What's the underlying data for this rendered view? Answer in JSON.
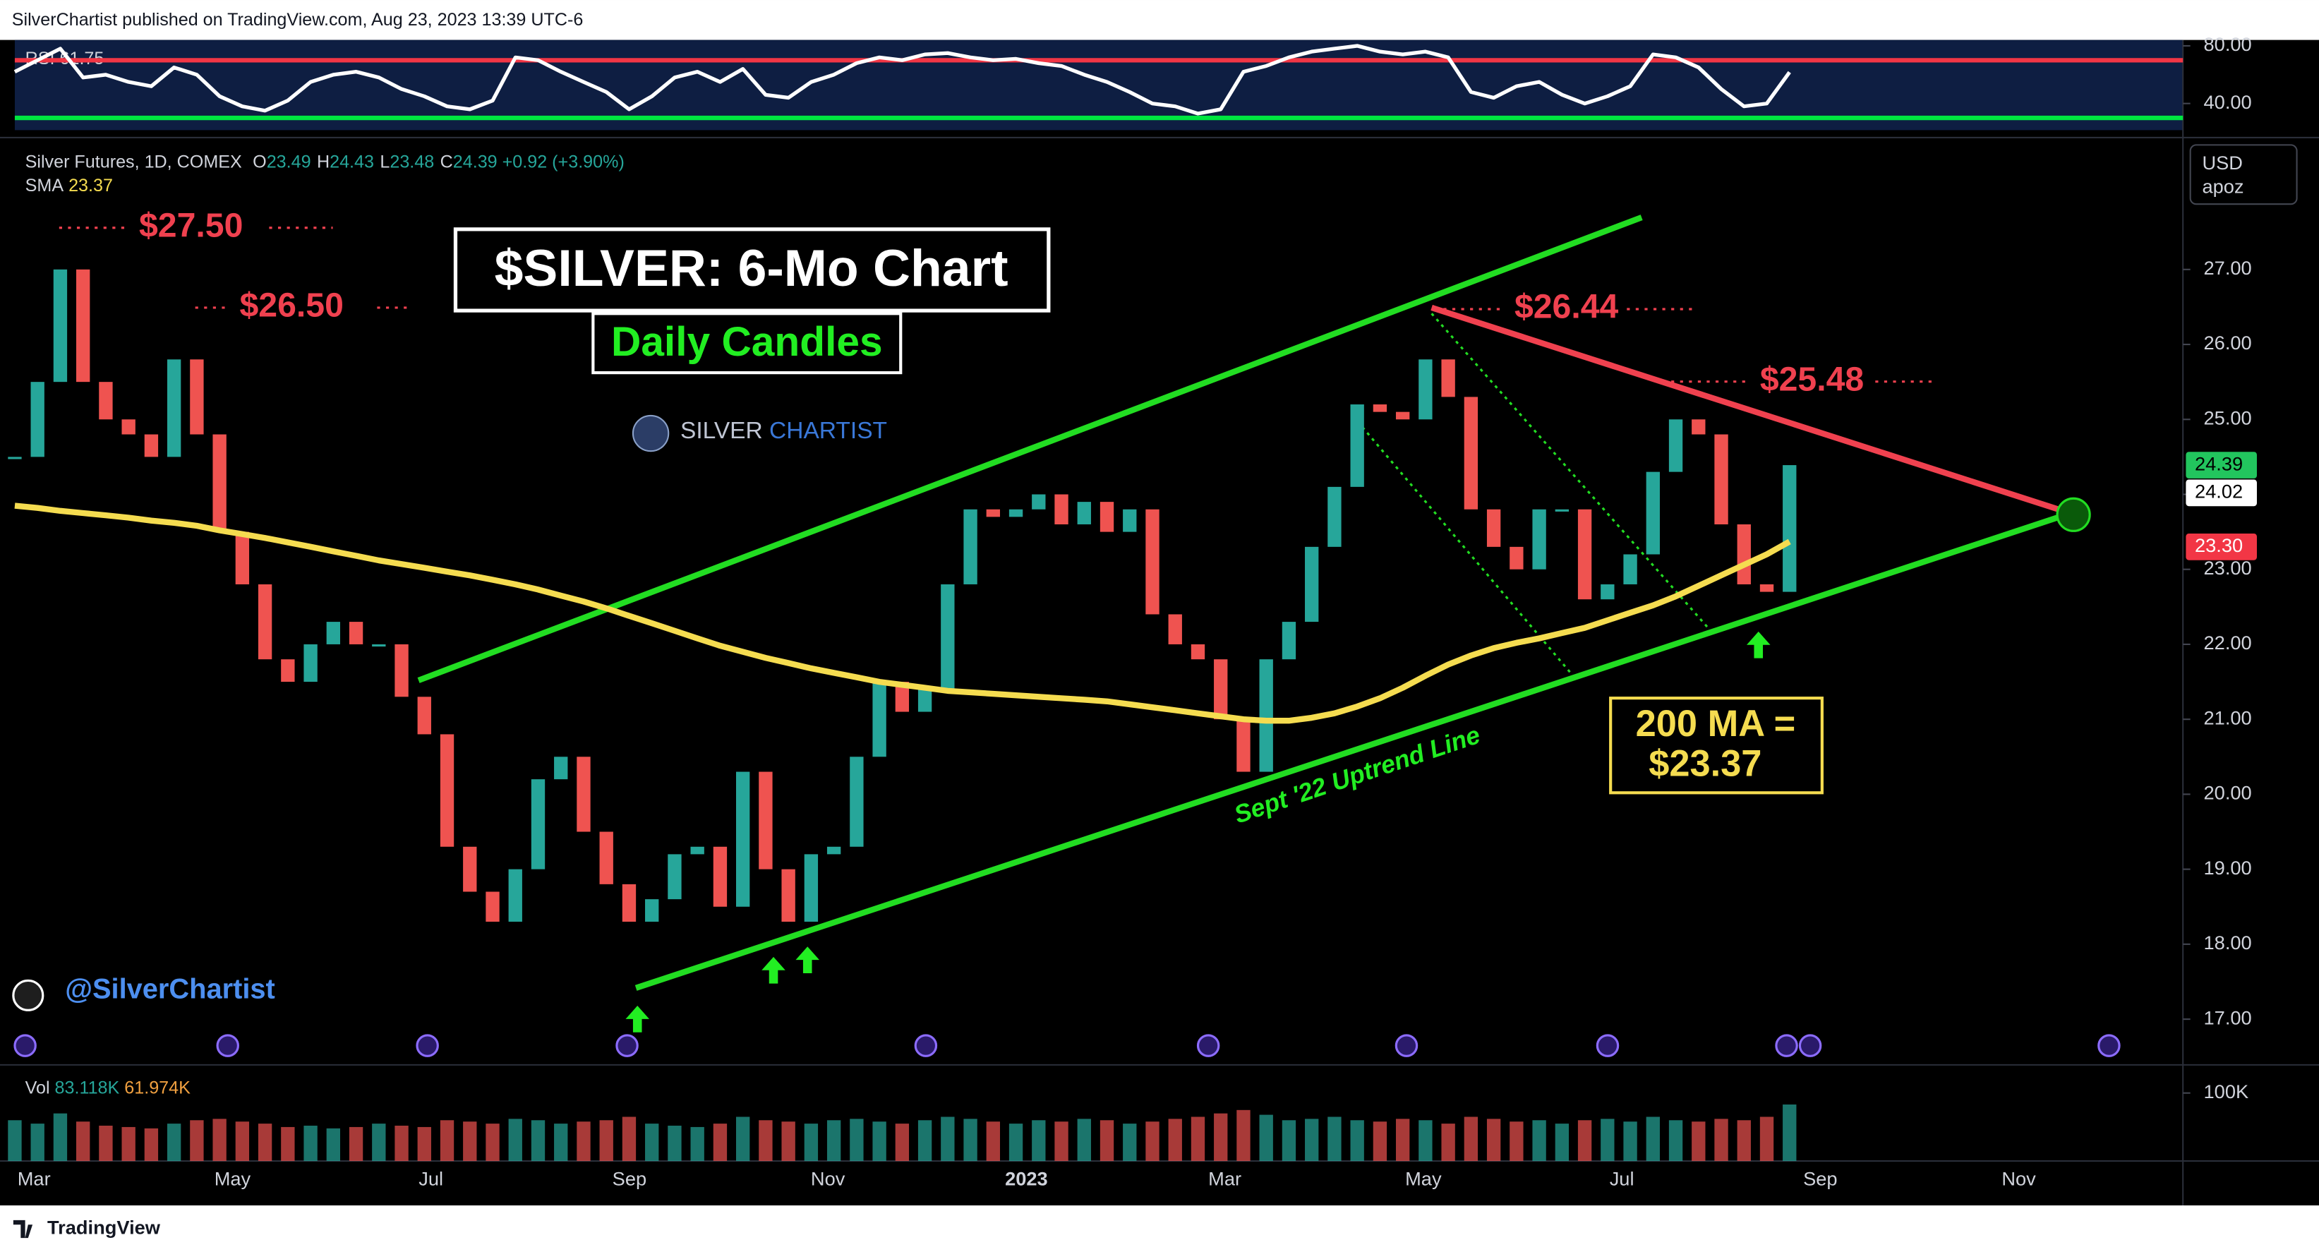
{
  "header": {
    "publisher": "SilverChartist published on TradingView.com, Aug 23, 2023 13:39 UTC-6",
    "footer": "TradingView",
    "handle": "@SilverChartist",
    "currency": "USD",
    "unit": "apoz",
    "symbol": "Silver Futures, 1D, COMEX",
    "ohlc": [
      {
        "k": "O",
        "v": "23.49"
      },
      {
        "k": "H",
        "v": "24.43"
      },
      {
        "k": "L",
        "v": "23.48"
      },
      {
        "k": "C",
        "v": "24.39"
      }
    ],
    "change": "+0.92 (+3.90%)",
    "sma_label": "SMA",
    "sma_value": "23.37",
    "rsi_label": "RSI",
    "rsi_value": "61.75",
    "vol_label": "Vol",
    "vol_values": [
      "83.118K",
      "61.974K"
    ],
    "logo": [
      "SILVER",
      "CHARTIST"
    ]
  },
  "chart_data": {
    "type": "candlestick",
    "title": "$SILVER: 6-Mo Chart",
    "subtitle": "Daily Candles",
    "annotations": [
      "$27.50",
      "$26.50",
      "$26.44",
      "$25.48",
      "200 MA =",
      "$23.37",
      "Sept '22 Uptrend Line"
    ],
    "xticks": [
      "Mar",
      "May",
      "Jul",
      "Sep",
      "Nov",
      "2023",
      "Mar",
      "May",
      "Jul",
      "Sep",
      "Nov"
    ],
    "up_color": "#26a69a",
    "down_color": "#ef5350",
    "closes": [
      24.5,
      25.5,
      27.0,
      25.5,
      25.0,
      24.8,
      24.5,
      25.8,
      24.8,
      23.5,
      22.8,
      21.8,
      21.5,
      22.0,
      22.3,
      22.0,
      22.0,
      21.3,
      20.8,
      19.3,
      18.7,
      18.3,
      19.0,
      20.2,
      20.5,
      19.5,
      18.8,
      18.3,
      18.6,
      19.2,
      19.3,
      18.5,
      20.3,
      19.0,
      18.3,
      19.2,
      19.3,
      20.5,
      21.5,
      21.1,
      21.4,
      22.8,
      23.8,
      23.7,
      23.8,
      24.0,
      23.6,
      23.9,
      23.5,
      23.8,
      22.4,
      22.0,
      21.8,
      21.0,
      20.3,
      21.8,
      22.3,
      23.3,
      24.1,
      25.2,
      25.1,
      25.0,
      25.8,
      25.3,
      23.8,
      23.3,
      23.0,
      23.8,
      23.8,
      22.6,
      22.8,
      23.2,
      24.3,
      25.0,
      24.8,
      23.6,
      22.8,
      22.7,
      24.39
    ],
    "sma": {
      "color": "#f5dc50",
      "values": [
        23.85,
        23.82,
        23.78,
        23.75,
        23.72,
        23.69,
        23.65,
        23.62,
        23.58,
        23.52,
        23.47,
        23.42,
        23.36,
        23.3,
        23.24,
        23.18,
        23.12,
        23.07,
        23.02,
        22.97,
        22.92,
        22.86,
        22.8,
        22.73,
        22.65,
        22.57,
        22.48,
        22.38,
        22.28,
        22.18,
        22.08,
        21.98,
        21.9,
        21.82,
        21.75,
        21.68,
        21.62,
        21.56,
        21.5,
        21.46,
        21.42,
        21.38,
        21.36,
        21.34,
        21.32,
        21.3,
        21.28,
        21.26,
        21.24,
        21.2,
        21.16,
        21.12,
        21.08,
        21.04,
        21.0,
        20.98,
        20.98,
        21.02,
        21.08,
        21.17,
        21.28,
        21.42,
        21.58,
        21.73,
        21.85,
        21.95,
        22.02,
        22.08,
        22.15,
        22.22,
        22.32,
        22.42,
        22.52,
        22.64,
        22.78,
        22.92,
        23.06,
        23.2,
        23.37
      ]
    },
    "ylim": [
      16.39,
      28.72
    ],
    "yticks": [
      {
        "value": 17,
        "label": "17.00"
      },
      {
        "value": 18,
        "label": "18.00"
      },
      {
        "value": 19,
        "label": "19.00"
      },
      {
        "value": 20,
        "label": "20.00"
      },
      {
        "value": 21,
        "label": "21.00"
      },
      {
        "value": 22,
        "label": "22.00"
      },
      {
        "value": 23,
        "label": "23.00"
      },
      {
        "value": 24,
        "label": "24.00"
      },
      {
        "value": 25,
        "label": "25.00"
      },
      {
        "value": 26,
        "label": "26.00"
      },
      {
        "value": 27,
        "label": "27.00"
      }
    ],
    "price_tags": [
      {
        "value": 24.39,
        "label": "24.39",
        "color": "#22c55e"
      },
      {
        "value": 24.02,
        "label": "24.02",
        "color": "#ffffff"
      },
      {
        "value": 23.3,
        "label": "23.30",
        "color": "#f23645"
      }
    ],
    "rsi": {
      "color": "#ffffff",
      "values": [
        62,
        70,
        78,
        58,
        60,
        55,
        52,
        65,
        60,
        45,
        38,
        35,
        42,
        55,
        60,
        62,
        58,
        50,
        45,
        38,
        36,
        42,
        72,
        70,
        62,
        55,
        48,
        36,
        45,
        58,
        62,
        55,
        64,
        46,
        44,
        55,
        60,
        68,
        72,
        70,
        74,
        75,
        72,
        70,
        71,
        68,
        66,
        60,
        55,
        48,
        40,
        38,
        33,
        36,
        62,
        66,
        72,
        76,
        78,
        80,
        76,
        74,
        76,
        72,
        48,
        44,
        52,
        55,
        46,
        40,
        45,
        52,
        74,
        72,
        65,
        50,
        38,
        40,
        61.75
      ],
      "ylim": [
        21.5,
        84.1
      ],
      "yticks": [
        {
          "value": 40,
          "label": "40.00"
        },
        {
          "value": 80,
          "label": "80.00"
        }
      ],
      "levels": [
        {
          "value": 70,
          "color": "#f23645"
        },
        {
          "value": 30,
          "color": "#00e640"
        }
      ]
    },
    "volume": {
      "values": [
        60000,
        55000,
        70000,
        58000,
        52000,
        50000,
        48000,
        55000,
        60000,
        62000,
        58000,
        55000,
        50000,
        52000,
        48000,
        50000,
        55000,
        52000,
        50000,
        60000,
        58000,
        55000,
        62000,
        60000,
        55000,
        58000,
        60000,
        65000,
        55000,
        52000,
        50000,
        55000,
        65000,
        60000,
        58000,
        55000,
        60000,
        62000,
        58000,
        55000,
        60000,
        65000,
        62000,
        58000,
        55000,
        60000,
        58000,
        62000,
        60000,
        55000,
        58000,
        62000,
        65000,
        70000,
        75000,
        68000,
        60000,
        62000,
        65000,
        60000,
        58000,
        62000,
        60000,
        55000,
        65000,
        62000,
        58000,
        60000,
        55000,
        60000,
        62000,
        58000,
        65000,
        60000,
        58000,
        62000,
        60000,
        65000,
        83118
      ],
      "ylim": [
        0,
        137000
      ],
      "yticks": [
        {
          "value": 100000,
          "label": "100K"
        }
      ]
    }
  }
}
